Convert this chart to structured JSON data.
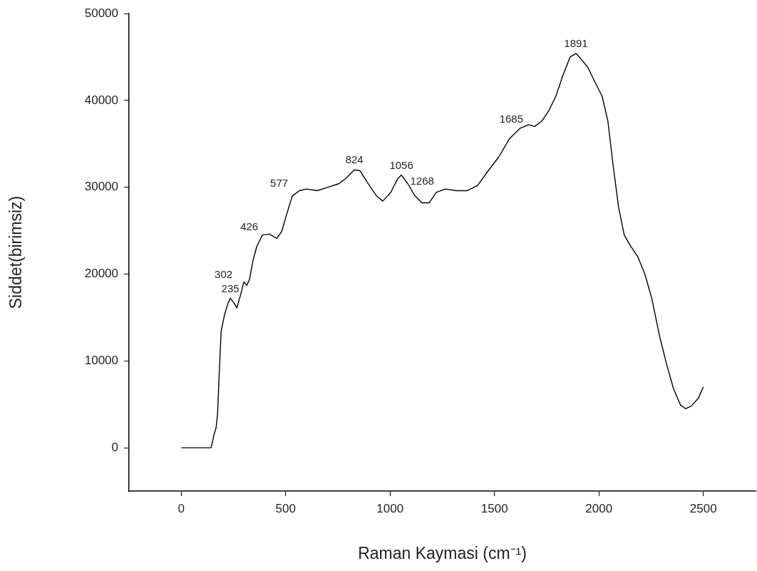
{
  "chart_data": {
    "type": "line",
    "xlabel": "Raman Kaymasi (cm⁻¹)",
    "ylabel": "Siddet(birimsiz)",
    "xlim": [
      -250,
      2750
    ],
    "xticks": [
      0,
      500,
      1000,
      1500,
      2000,
      2500
    ],
    "ylim": [
      -5000,
      50000
    ],
    "yticks": [
      0,
      10000,
      20000,
      30000,
      40000,
      50000
    ],
    "grid": false,
    "legend": false,
    "marker": "none",
    "line_style": "solid",
    "series": [
      {
        "color": "#000000",
        "x": [
          0,
          143,
          157,
          167,
          174,
          181,
          191,
          208,
          225,
          235,
          252,
          266,
          283,
          300,
          314,
          327,
          344,
          362,
          389,
          423,
          457,
          481,
          505,
          532,
          566,
          600,
          651,
          703,
          754,
          788,
          829,
          856,
          890,
          935,
          965,
          1003,
          1037,
          1054,
          1085,
          1119,
          1153,
          1187,
          1221,
          1265,
          1317,
          1368,
          1419,
          1470,
          1521,
          1572,
          1623,
          1664,
          1692,
          1726,
          1760,
          1794,
          1828,
          1862,
          1890,
          1913,
          1947,
          1981,
          2015,
          2043,
          2067,
          2094,
          2121,
          2152,
          2186,
          2220,
          2254,
          2289,
          2323,
          2357,
          2391,
          2415,
          2442,
          2476,
          2500
        ],
        "values": [
          0,
          0,
          1500,
          2300,
          3900,
          8000,
          13400,
          15400,
          16700,
          17200,
          16700,
          16100,
          17500,
          19100,
          18700,
          19400,
          21600,
          23200,
          24500,
          24600,
          24100,
          24900,
          26900,
          29000,
          29600,
          29800,
          29600,
          30000,
          30400,
          31000,
          32000,
          31900,
          30600,
          29000,
          28400,
          29400,
          31000,
          31400,
          30400,
          29000,
          28200,
          28200,
          29400,
          29800,
          29600,
          29600,
          30200,
          31900,
          33500,
          35600,
          36800,
          37200,
          37000,
          37600,
          38800,
          40500,
          42900,
          45000,
          45400,
          44800,
          43800,
          42100,
          40500,
          37600,
          32700,
          27700,
          24500,
          23200,
          22000,
          20000,
          17100,
          13000,
          9700,
          6800,
          4900,
          4500,
          4800,
          5700,
          7000
        ]
      }
    ],
    "annotations": [
      {
        "text": "235",
        "x": 235,
        "y": 17200
      },
      {
        "text": "302",
        "x": 300,
        "y": 19100
      },
      {
        "text": "426",
        "x": 423,
        "y": 24600
      },
      {
        "text": "577",
        "x": 566,
        "y": 29600
      },
      {
        "text": "824",
        "x": 829,
        "y": 32000
      },
      {
        "text": "1056",
        "x": 1054,
        "y": 31400
      },
      {
        "text": "1268",
        "x": 1265,
        "y": 29800
      },
      {
        "text": "1685",
        "x": 1692,
        "y": 37000
      },
      {
        "text": "1891",
        "x": 1890,
        "y": 45400
      }
    ]
  }
}
